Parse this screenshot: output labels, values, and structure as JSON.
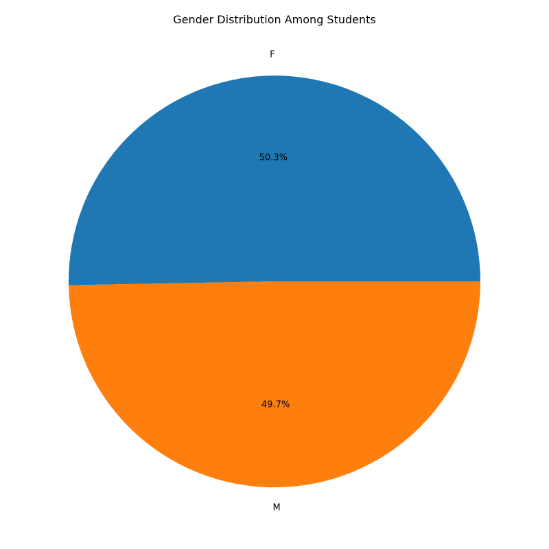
{
  "chart_data": {
    "type": "pie",
    "title": "Gender Distribution Among Students",
    "categories": [
      "F",
      "M"
    ],
    "values": [
      50.3,
      49.7
    ],
    "value_labels": [
      "50.3%",
      "49.7%"
    ],
    "colors": [
      "#1f77b4",
      "#ff7f0e"
    ],
    "start_angle_deg": 0,
    "direction": "counterclockwise"
  }
}
